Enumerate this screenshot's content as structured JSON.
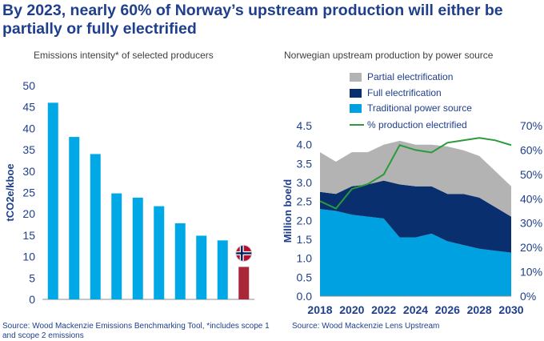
{
  "headline": "By 2023, nearly 60% of Norway’s upstream production will either be partially or fully electrified",
  "colors": {
    "headline": "#1f3f8c",
    "bar": "#00a9e6",
    "bar_norway": "#a8283a",
    "partial": "#b3b3b3",
    "full": "#0a2f6e",
    "traditional": "#00a1e0",
    "pct_line": "#2a9a3a"
  },
  "chart_data": [
    {
      "type": "bar",
      "title": "Emissions intensity* of selected producers",
      "ylabel": "tCO2e/kboe",
      "ylim": [
        0,
        50
      ],
      "yticks": [
        "0",
        "5",
        "10",
        "15",
        "20",
        "25",
        "30",
        "35",
        "40",
        "45",
        "50"
      ],
      "values": [
        46,
        38,
        34,
        24.8,
        23.8,
        21.8,
        17.8,
        14.9,
        13.8,
        7.6
      ],
      "highlight_last": true,
      "flag_icon": "norway-flag-icon",
      "source": "Source: Wood Mackenzie Emissions Benchmarking Tool, *includes scope 1 and scope 2 emissions"
    },
    {
      "type": "area",
      "title": "Norwegian upstream production by power source",
      "ylabel": "Million boe/d",
      "ylim": [
        0,
        4.5
      ],
      "y2lim": [
        0,
        70
      ],
      "yticks": [
        "0.0",
        "0.5",
        "1.0",
        "1.5",
        "2.0",
        "2.5",
        "3.0",
        "3.5",
        "4.0",
        "4.5"
      ],
      "y2ticks": [
        "0%",
        "10%",
        "20%",
        "30%",
        "40%",
        "50%",
        "60%",
        "70%"
      ],
      "xticks": [
        "2018",
        "2020",
        "2022",
        "2024",
        "2026",
        "2028",
        "2030"
      ],
      "x": [
        2018,
        2019,
        2020,
        2021,
        2022,
        2023,
        2024,
        2025,
        2026,
        2027,
        2028,
        2029,
        2030
      ],
      "series": [
        {
          "name": "Traditional power source",
          "values": [
            2.3,
            2.25,
            2.15,
            2.1,
            2.05,
            1.55,
            1.55,
            1.65,
            1.45,
            1.35,
            1.25,
            1.2,
            1.15
          ]
        },
        {
          "name": "Full electrification",
          "values": [
            0.45,
            0.45,
            0.75,
            0.85,
            1.0,
            1.4,
            1.35,
            1.25,
            1.25,
            1.35,
            1.35,
            1.15,
            0.95
          ]
        },
        {
          "name": "Partial electrification",
          "values": [
            1.05,
            0.85,
            0.9,
            0.85,
            0.95,
            1.15,
            1.1,
            1.1,
            1.25,
            1.15,
            1.1,
            0.95,
            0.8
          ]
        }
      ],
      "line_series": {
        "name": "% production electrified",
        "axis": "right",
        "values": [
          39,
          36,
          44,
          46,
          50,
          62,
          60,
          59,
          63,
          64,
          65,
          64,
          62
        ]
      },
      "legend": [
        "Partial electrification",
        "Full electrification",
        "Traditional power source",
        "% production electrified"
      ],
      "legend_position": "top",
      "source": "Source: Wood Mackenzie Lens Upstream"
    }
  ]
}
